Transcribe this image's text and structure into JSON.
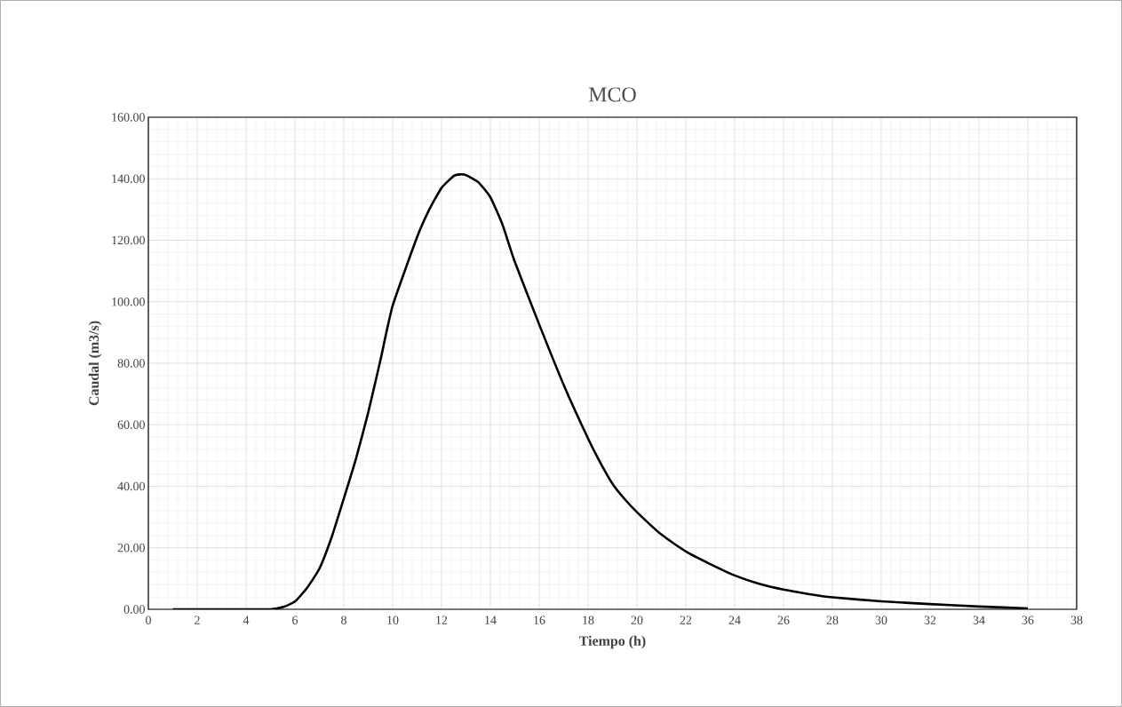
{
  "chart_data": {
    "type": "line",
    "title": "MCO",
    "xlabel": "Tiempo (h)",
    "ylabel": "Caudal (m3/s)",
    "x": [
      1,
      2,
      3,
      4,
      5,
      5.5,
      6,
      6.5,
      7,
      7.5,
      8,
      8.5,
      9,
      9.5,
      10,
      11,
      11.5,
      12,
      12.5,
      12.75,
      13,
      13.5,
      14,
      14.5,
      15,
      16,
      17,
      18,
      18.5,
      19,
      19.5,
      20,
      21,
      22,
      23,
      24,
      25,
      26,
      27,
      28,
      30,
      32,
      34,
      36
    ],
    "series": [
      {
        "color": "#000000",
        "values": [
          0,
          0,
          0,
          0,
          0,
          0.7,
          2.5,
          7,
          13.2,
          23.4,
          36,
          49,
          64,
          81,
          98.7,
          121,
          130,
          137,
          140.9,
          141.4,
          141.2,
          138.9,
          134,
          125,
          113,
          92.6,
          73,
          55.5,
          47.7,
          40.8,
          35.8,
          31.6,
          24.3,
          18.8,
          14.7,
          11,
          8.3,
          6.4,
          5,
          3.9,
          2.6,
          1.7,
          0.9,
          0.3
        ]
      }
    ],
    "xlim": [
      0,
      38
    ],
    "xticks": [
      0,
      2,
      4,
      6,
      8,
      10,
      12,
      14,
      16,
      18,
      20,
      22,
      24,
      26,
      28,
      30,
      32,
      34,
      36,
      38
    ],
    "ylim": [
      0,
      160
    ],
    "yticks": [
      {
        "value": 0,
        "label": "0.00"
      },
      {
        "value": 20,
        "label": "20.00"
      },
      {
        "value": 40,
        "label": "40.00"
      },
      {
        "value": 60,
        "label": "60.00"
      },
      {
        "value": 80,
        "label": "80.00"
      },
      {
        "value": 100,
        "label": "100.00"
      },
      {
        "value": 120,
        "label": "120.00"
      },
      {
        "value": 140,
        "label": "140.00"
      },
      {
        "value": 160,
        "label": "160.00"
      }
    ],
    "grid": true,
    "marker": "none",
    "line_style": "solid"
  }
}
